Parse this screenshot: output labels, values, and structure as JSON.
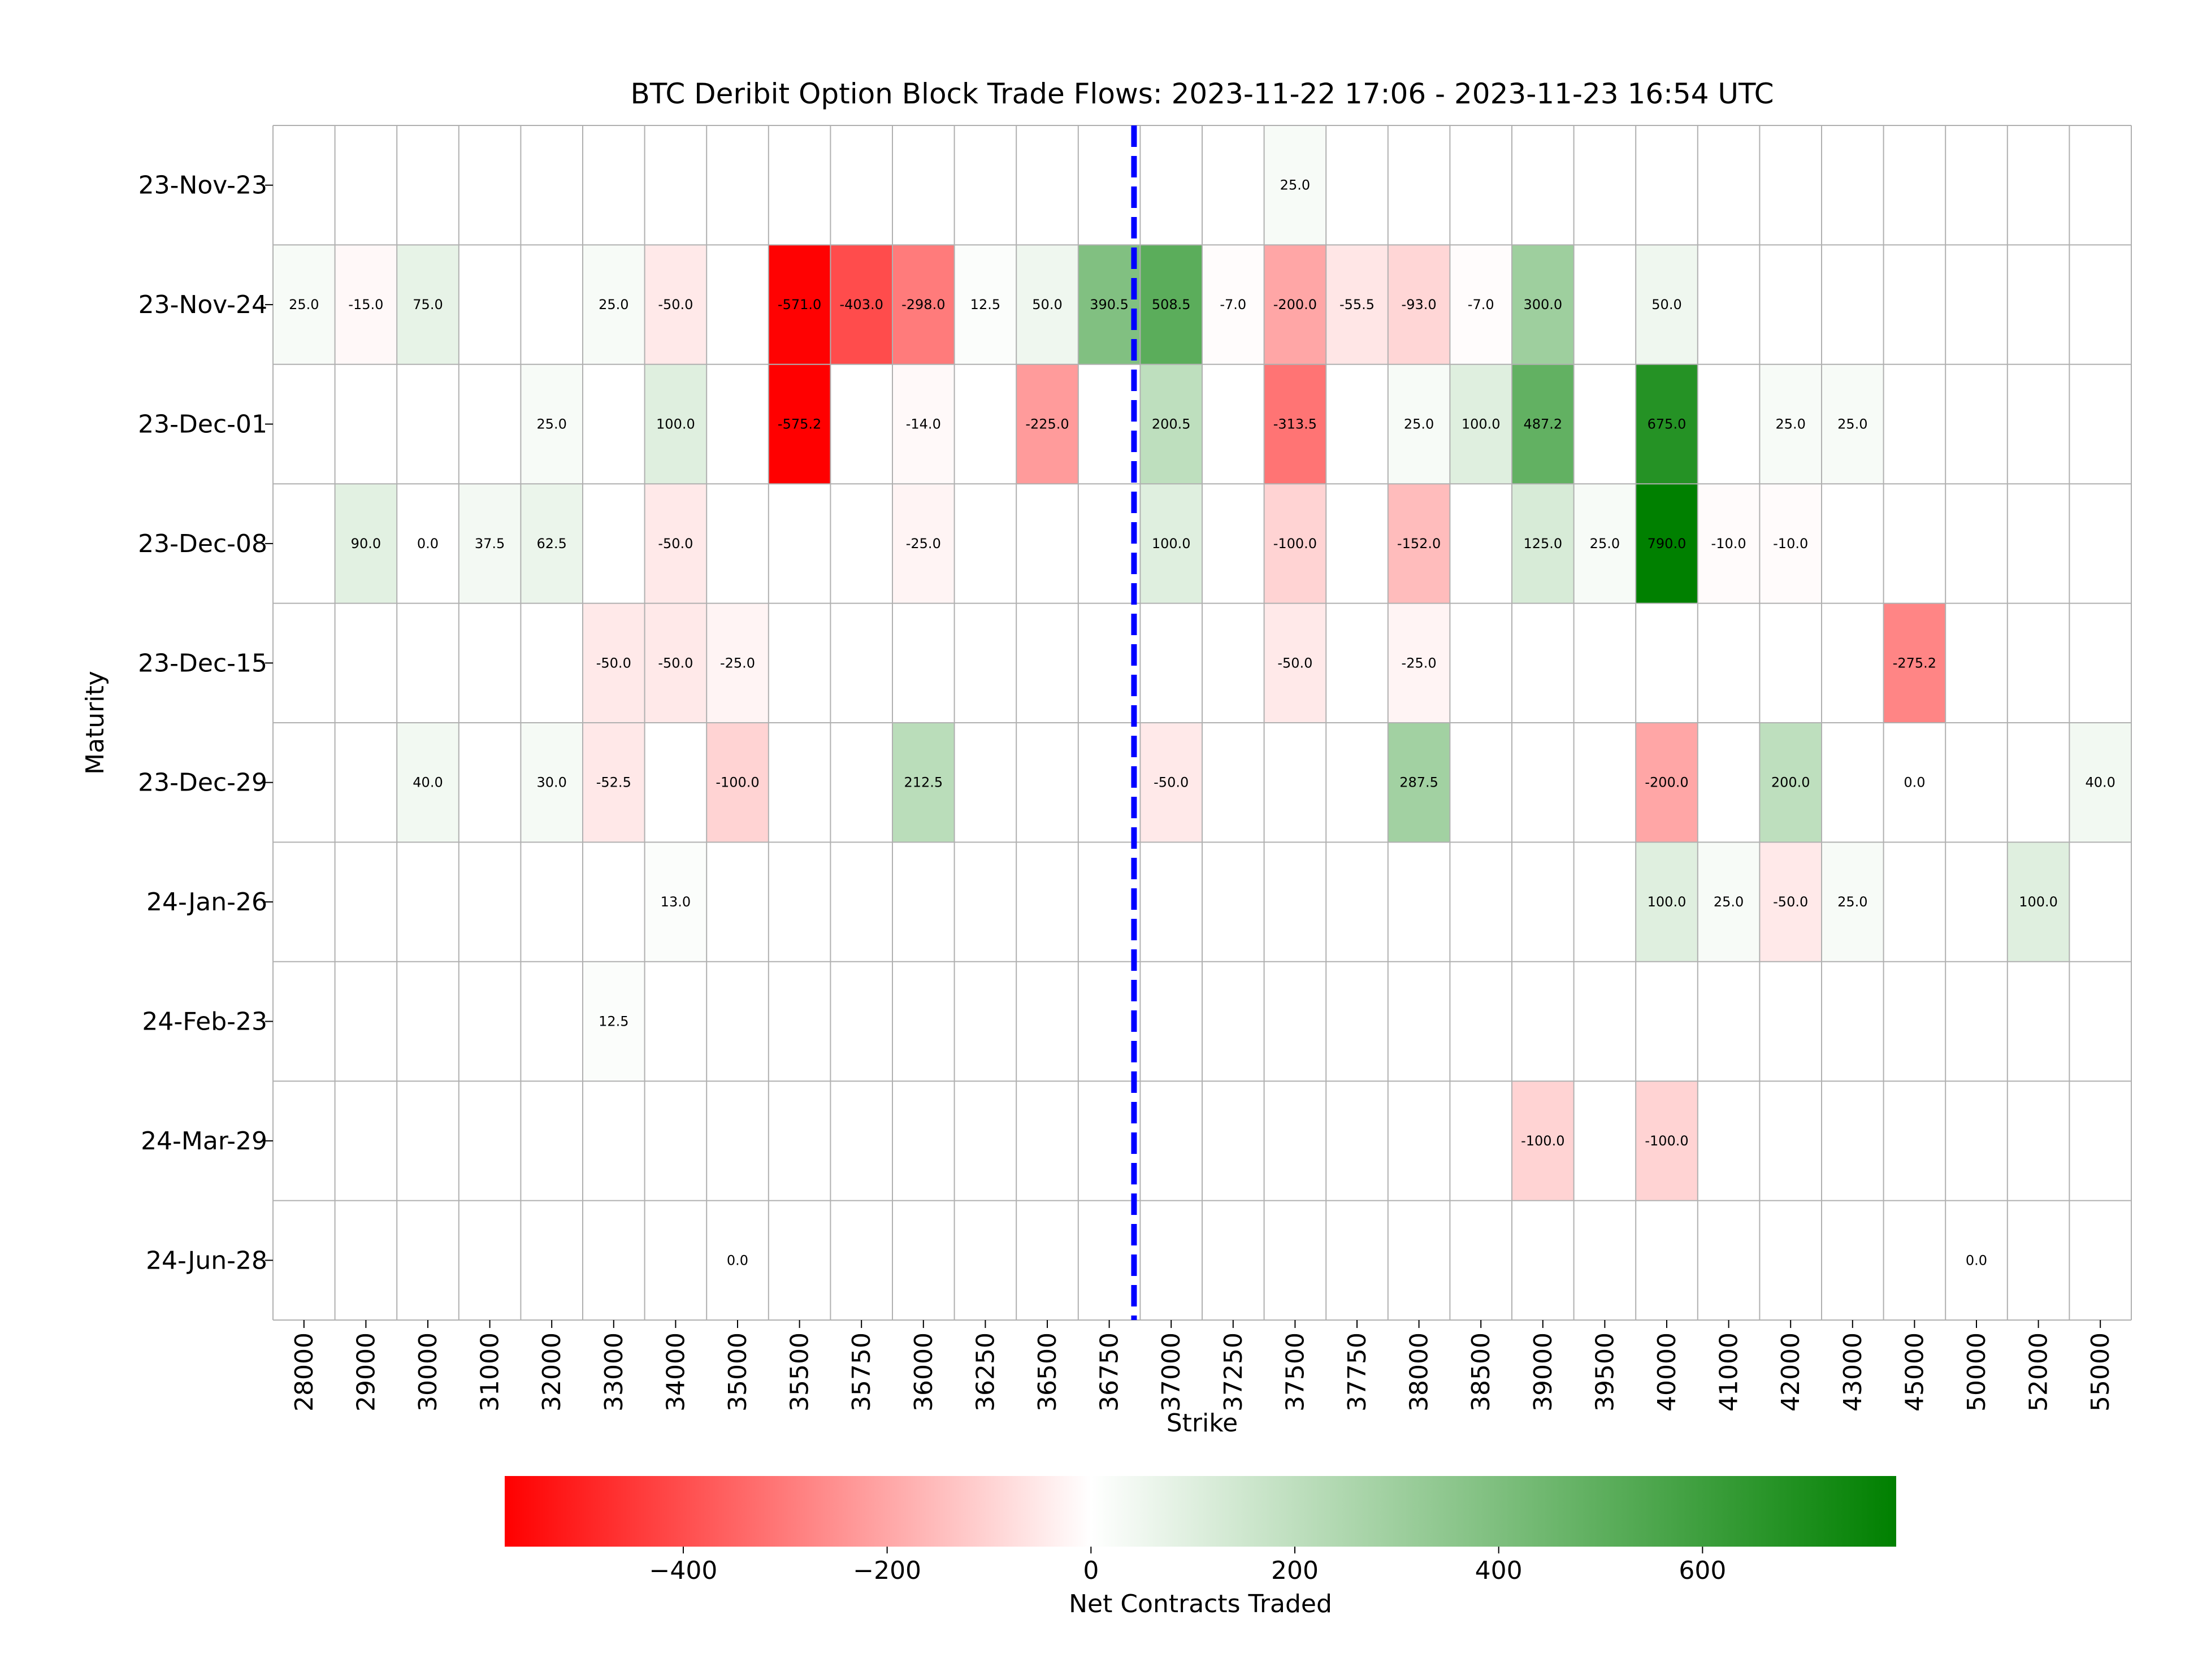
{
  "chart_data": {
    "type": "heatmap",
    "title": "BTC Deribit Option Block Trade Flows: 2023-11-22 17:06 - 2023-11-23 16:54 UTC",
    "xlabel": "Strike",
    "ylabel": "Maturity",
    "colorbar_label": "Net Contracts Traded",
    "colorbar_ticks": [
      -400,
      -200,
      0,
      200,
      400,
      600
    ],
    "colorbar_tick_labels": [
      "−400",
      "−200",
      "0",
      "200",
      "400",
      "600"
    ],
    "color_range": [
      -575.2,
      790.0
    ],
    "colors": {
      "negative": "#ff0000",
      "zero": "#ffffff",
      "positive": "#008000",
      "spot_line": "#0000ff",
      "grid": "#b0b0b0"
    },
    "spot_line_strike_position": "between 36750 and 37000",
    "x_categories": [
      "28000",
      "29000",
      "30000",
      "31000",
      "32000",
      "33000",
      "34000",
      "35000",
      "35500",
      "35750",
      "36000",
      "36250",
      "36500",
      "36750",
      "37000",
      "37250",
      "37500",
      "37750",
      "38000",
      "38500",
      "39000",
      "39500",
      "40000",
      "41000",
      "42000",
      "43000",
      "45000",
      "50000",
      "52000",
      "55000"
    ],
    "y_categories": [
      "23-Nov-23",
      "23-Nov-24",
      "23-Dec-01",
      "23-Dec-08",
      "23-Dec-15",
      "23-Dec-29",
      "24-Jan-26",
      "24-Feb-23",
      "24-Mar-29",
      "24-Jun-28"
    ],
    "cells": [
      {
        "maturity": "23-Nov-23",
        "strike": "37500",
        "value": 25.0
      },
      {
        "maturity": "23-Nov-24",
        "strike": "28000",
        "value": 25.0
      },
      {
        "maturity": "23-Nov-24",
        "strike": "29000",
        "value": -15.0
      },
      {
        "maturity": "23-Nov-24",
        "strike": "30000",
        "value": 75.0
      },
      {
        "maturity": "23-Nov-24",
        "strike": "33000",
        "value": 25.0
      },
      {
        "maturity": "23-Nov-24",
        "strike": "34000",
        "value": -50.0
      },
      {
        "maturity": "23-Nov-24",
        "strike": "35500",
        "value": -571.0
      },
      {
        "maturity": "23-Nov-24",
        "strike": "35750",
        "value": -403.0
      },
      {
        "maturity": "23-Nov-24",
        "strike": "36000",
        "value": -298.0
      },
      {
        "maturity": "23-Nov-24",
        "strike": "36250",
        "value": 12.5
      },
      {
        "maturity": "23-Nov-24",
        "strike": "36500",
        "value": 50.0
      },
      {
        "maturity": "23-Nov-24",
        "strike": "36750",
        "value": 390.5
      },
      {
        "maturity": "23-Nov-24",
        "strike": "37000",
        "value": 508.5
      },
      {
        "maturity": "23-Nov-24",
        "strike": "37250",
        "value": -7.0
      },
      {
        "maturity": "23-Nov-24",
        "strike": "37500",
        "value": -200.0
      },
      {
        "maturity": "23-Nov-24",
        "strike": "37750",
        "value": -55.5
      },
      {
        "maturity": "23-Nov-24",
        "strike": "38000",
        "value": -93.0
      },
      {
        "maturity": "23-Nov-24",
        "strike": "38500",
        "value": -7.0
      },
      {
        "maturity": "23-Nov-24",
        "strike": "39000",
        "value": 300.0
      },
      {
        "maturity": "23-Nov-24",
        "strike": "40000",
        "value": 50.0
      },
      {
        "maturity": "23-Dec-01",
        "strike": "32000",
        "value": 25.0
      },
      {
        "maturity": "23-Dec-01",
        "strike": "34000",
        "value": 100.0
      },
      {
        "maturity": "23-Dec-01",
        "strike": "35500",
        "value": -575.2
      },
      {
        "maturity": "23-Dec-01",
        "strike": "36000",
        "value": -14.0
      },
      {
        "maturity": "23-Dec-01",
        "strike": "36500",
        "value": -225.0
      },
      {
        "maturity": "23-Dec-01",
        "strike": "37000",
        "value": 200.5
      },
      {
        "maturity": "23-Dec-01",
        "strike": "37500",
        "value": -313.5
      },
      {
        "maturity": "23-Dec-01",
        "strike": "38000",
        "value": 25.0
      },
      {
        "maturity": "23-Dec-01",
        "strike": "38500",
        "value": 100.0
      },
      {
        "maturity": "23-Dec-01",
        "strike": "39000",
        "value": 487.2
      },
      {
        "maturity": "23-Dec-01",
        "strike": "40000",
        "value": 675.0
      },
      {
        "maturity": "23-Dec-01",
        "strike": "42000",
        "value": 25.0
      },
      {
        "maturity": "23-Dec-01",
        "strike": "43000",
        "value": 25.0
      },
      {
        "maturity": "23-Dec-08",
        "strike": "29000",
        "value": 90.0
      },
      {
        "maturity": "23-Dec-08",
        "strike": "30000",
        "value": 0.0
      },
      {
        "maturity": "23-Dec-08",
        "strike": "31000",
        "value": 37.5
      },
      {
        "maturity": "23-Dec-08",
        "strike": "32000",
        "value": 62.5
      },
      {
        "maturity": "23-Dec-08",
        "strike": "34000",
        "value": -50.0
      },
      {
        "maturity": "23-Dec-08",
        "strike": "36000",
        "value": -25.0
      },
      {
        "maturity": "23-Dec-08",
        "strike": "37000",
        "value": 100.0
      },
      {
        "maturity": "23-Dec-08",
        "strike": "37500",
        "value": -100.0
      },
      {
        "maturity": "23-Dec-08",
        "strike": "38000",
        "value": -152.0
      },
      {
        "maturity": "23-Dec-08",
        "strike": "39000",
        "value": 125.0
      },
      {
        "maturity": "23-Dec-08",
        "strike": "39500",
        "value": 25.0
      },
      {
        "maturity": "23-Dec-08",
        "strike": "40000",
        "value": 790.0
      },
      {
        "maturity": "23-Dec-08",
        "strike": "41000",
        "value": -10.0
      },
      {
        "maturity": "23-Dec-08",
        "strike": "42000",
        "value": -10.0
      },
      {
        "maturity": "23-Dec-15",
        "strike": "33000",
        "value": -50.0
      },
      {
        "maturity": "23-Dec-15",
        "strike": "34000",
        "value": -50.0
      },
      {
        "maturity": "23-Dec-15",
        "strike": "35000",
        "value": -25.0
      },
      {
        "maturity": "23-Dec-15",
        "strike": "37500",
        "value": -50.0
      },
      {
        "maturity": "23-Dec-15",
        "strike": "38000",
        "value": -25.0
      },
      {
        "maturity": "23-Dec-15",
        "strike": "45000",
        "value": -275.2
      },
      {
        "maturity": "23-Dec-29",
        "strike": "30000",
        "value": 40.0
      },
      {
        "maturity": "23-Dec-29",
        "strike": "32000",
        "value": 30.0
      },
      {
        "maturity": "23-Dec-29",
        "strike": "33000",
        "value": -52.5
      },
      {
        "maturity": "23-Dec-29",
        "strike": "35000",
        "value": -100.0
      },
      {
        "maturity": "23-Dec-29",
        "strike": "36000",
        "value": 212.5
      },
      {
        "maturity": "23-Dec-29",
        "strike": "37000",
        "value": -50.0
      },
      {
        "maturity": "23-Dec-29",
        "strike": "38000",
        "value": 287.5
      },
      {
        "maturity": "23-Dec-29",
        "strike": "40000",
        "value": -200.0
      },
      {
        "maturity": "23-Dec-29",
        "strike": "42000",
        "value": 200.0
      },
      {
        "maturity": "23-Dec-29",
        "strike": "45000",
        "value": 0.0
      },
      {
        "maturity": "23-Dec-29",
        "strike": "55000",
        "value": 40.0
      },
      {
        "maturity": "24-Jan-26",
        "strike": "34000",
        "value": 13.0
      },
      {
        "maturity": "24-Jan-26",
        "strike": "40000",
        "value": 100.0
      },
      {
        "maturity": "24-Jan-26",
        "strike": "41000",
        "value": 25.0
      },
      {
        "maturity": "24-Jan-26",
        "strike": "42000",
        "value": -50.0
      },
      {
        "maturity": "24-Jan-26",
        "strike": "43000",
        "value": 25.0
      },
      {
        "maturity": "24-Jan-26",
        "strike": "52000",
        "value": 100.0
      },
      {
        "maturity": "24-Feb-23",
        "strike": "33000",
        "value": 12.5
      },
      {
        "maturity": "24-Mar-29",
        "strike": "39000",
        "value": -100.0
      },
      {
        "maturity": "24-Mar-29",
        "strike": "40000",
        "value": -100.0
      },
      {
        "maturity": "24-Jun-28",
        "strike": "35000",
        "value": 0.0
      },
      {
        "maturity": "24-Jun-28",
        "strike": "50000",
        "value": 0.0
      }
    ]
  }
}
